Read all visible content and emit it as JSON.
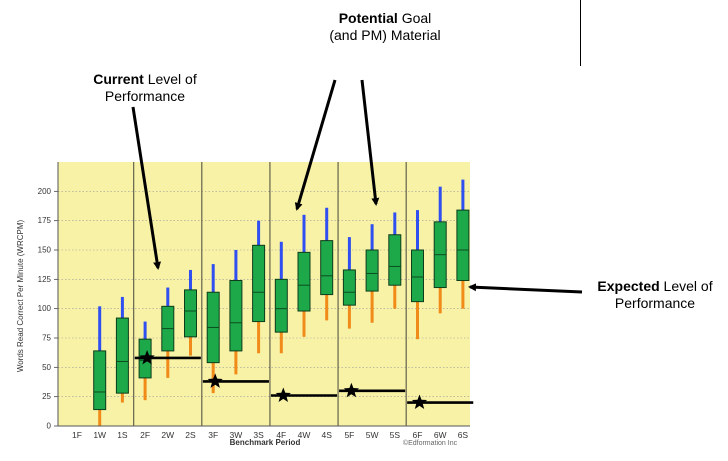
{
  "callouts": {
    "potential": {
      "bold": "Potential",
      "rest1": " Goal",
      "line2": "(and PM) Material"
    },
    "current": {
      "bold": "Current",
      "rest1": " Level of",
      "line2": "Performance"
    },
    "expected": {
      "bold": "Expected",
      "rest1": " Level of",
      "line2": "Performance"
    }
  },
  "chart_data": {
    "type": "box",
    "xlabel": "Benchmark Period",
    "ylabel": "Words Read Correct Per Minute (WRCPM)",
    "credit": "©Edformation Inc",
    "ylim": [
      0,
      225
    ],
    "yticks": [
      0,
      25,
      50,
      75,
      100,
      125,
      150,
      175,
      200
    ],
    "categories": [
      "1F",
      "1W",
      "1S",
      "2F",
      "2W",
      "2S",
      "3F",
      "3W",
      "3S",
      "4F",
      "4W",
      "4S",
      "5F",
      "5W",
      "5S",
      "6F",
      "6W",
      "6S"
    ],
    "grid": "horizontal dotted",
    "colors": {
      "plot_bg": "#f8f2a6",
      "box": "#1da84a",
      "whisker_high": "#2f4ff0",
      "whisker_low": "#f08a18",
      "median": "#0b4d1e",
      "target": "#000000"
    },
    "boxes": [
      {
        "period": "1F",
        "low": 0,
        "q1": 0,
        "median": 0,
        "q3": 0,
        "high": 0
      },
      {
        "period": "1W",
        "low": 0,
        "q1": 14,
        "median": 29,
        "q3": 64,
        "high": 102
      },
      {
        "period": "1S",
        "low": 20,
        "q1": 28,
        "median": 55,
        "q3": 92,
        "high": 110
      },
      {
        "period": "2F",
        "low": 22,
        "q1": 41,
        "median": 56,
        "q3": 74,
        "high": 89
      },
      {
        "period": "2W",
        "low": 41,
        "q1": 64,
        "median": 83,
        "q3": 102,
        "high": 118
      },
      {
        "period": "2S",
        "low": 60,
        "q1": 76,
        "median": 98,
        "q3": 116,
        "high": 133
      },
      {
        "period": "3F",
        "low": 28,
        "q1": 54,
        "median": 84,
        "q3": 114,
        "high": 138
      },
      {
        "period": "3W",
        "low": 44,
        "q1": 64,
        "median": 88,
        "q3": 124,
        "high": 150
      },
      {
        "period": "3S",
        "low": 62,
        "q1": 89,
        "median": 114,
        "q3": 154,
        "high": 175
      },
      {
        "period": "4F",
        "low": 62,
        "q1": 80,
        "median": 100,
        "q3": 125,
        "high": 157
      },
      {
        "period": "4W",
        "low": 76,
        "q1": 98,
        "median": 120,
        "q3": 148,
        "high": 180
      },
      {
        "period": "4S",
        "low": 90,
        "q1": 112,
        "median": 128,
        "q3": 158,
        "high": 186
      },
      {
        "period": "5F",
        "low": 83,
        "q1": 103,
        "median": 114,
        "q3": 133,
        "high": 161
      },
      {
        "period": "5W",
        "low": 88,
        "q1": 115,
        "median": 130,
        "q3": 150,
        "high": 172
      },
      {
        "period": "5S",
        "low": 100,
        "q1": 120,
        "median": 136,
        "q3": 163,
        "high": 182
      },
      {
        "period": "6F",
        "low": 74,
        "q1": 106,
        "median": 127,
        "q3": 150,
        "high": 184
      },
      {
        "period": "6W",
        "low": 96,
        "q1": 118,
        "median": 146,
        "q3": 174,
        "high": 204
      },
      {
        "period": "6S",
        "low": 100,
        "q1": 124,
        "median": 150,
        "q3": 184,
        "high": 210
      }
    ],
    "targets": [
      {
        "from": "2F",
        "to": "2S",
        "value": 58,
        "star": "2F"
      },
      {
        "from": "3F",
        "to": "3S",
        "value": 38,
        "star": "3F"
      },
      {
        "from": "4F",
        "to": "4S",
        "value": 26,
        "star": "4F"
      },
      {
        "from": "5F",
        "to": "5S",
        "value": 30,
        "star": "5F"
      },
      {
        "from": "6F",
        "to": "6S",
        "value": 20,
        "star": "6F"
      }
    ]
  }
}
